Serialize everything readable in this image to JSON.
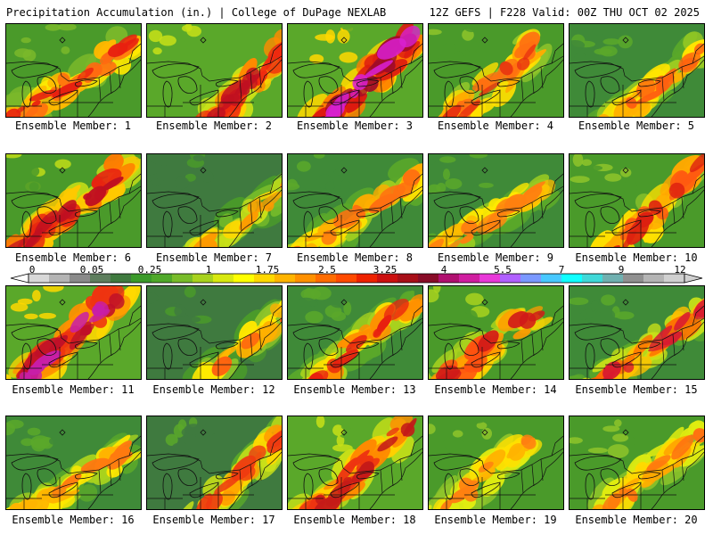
{
  "header": {
    "title": "Precipitation Accumulation (in.) | College of DuPage NEXLAB",
    "run_info": "12Z GEFS | F228 Valid: 00Z THU OCT 02 2025"
  },
  "legend": {
    "labels": [
      "0",
      "0.05",
      "0.25",
      "1",
      "1.75",
      "2.5",
      "3.25",
      "4",
      "5.5",
      "7",
      "9",
      "12"
    ],
    "colors": [
      "#d8d8d8",
      "#b4b4b4",
      "#8a8a8a",
      "#5e7e5e",
      "#3f7a3f",
      "#3b9a2a",
      "#4fa82a",
      "#78bc2a",
      "#a8d21e",
      "#d8e810",
      "#ffff00",
      "#ffd800",
      "#ffb400",
      "#ff9000",
      "#ff6c00",
      "#ff4a00",
      "#ee2200",
      "#cc1010",
      "#a80f18",
      "#880c28",
      "#b01070",
      "#d01ea0",
      "#e838d8",
      "#b060ff",
      "#7a98ff",
      "#48c8ff",
      "#10ffff",
      "#40d8d8",
      "#70b0b0",
      "#909090",
      "#b4b4b4",
      "#d0d0d0"
    ]
  },
  "members": [
    {
      "label": "Ensemble Member: 1",
      "palette": [
        "#4a9a2a",
        "#7ab82a",
        "#ffe800",
        "#ffb800",
        "#ff6a10",
        "#e82010"
      ]
    },
    {
      "label": "Ensemble Member: 2",
      "palette": [
        "#5aa82a",
        "#c8e018",
        "#ffd000",
        "#ff8a00",
        "#ee2a10",
        "#c01020"
      ]
    },
    {
      "label": "Ensemble Member: 3",
      "palette": [
        "#5aa82a",
        "#ffd800",
        "#ff7a00",
        "#dd1a10",
        "#a00c28",
        "#d820d0"
      ]
    },
    {
      "label": "Ensemble Member: 4",
      "palette": [
        "#4a9a2a",
        "#8ec42a",
        "#ffe000",
        "#ffac00",
        "#ff7010",
        "#e83010"
      ]
    },
    {
      "label": "Ensemble Member: 5",
      "palette": [
        "#3f8a38",
        "#5aa82a",
        "#9ccc22",
        "#ffe400",
        "#ffb000",
        "#ff6010"
      ]
    },
    {
      "label": "Ensemble Member: 6",
      "palette": [
        "#4a9a2a",
        "#c0dc18",
        "#ffc800",
        "#ff7a00",
        "#e82410",
        "#c01020"
      ]
    },
    {
      "label": "Ensemble Member: 7",
      "palette": [
        "#3f7a3f",
        "#4a9a2a",
        "#78bc2a",
        "#c8e018",
        "#ffd800",
        "#ff9a00"
      ]
    },
    {
      "label": "Ensemble Member: 8",
      "palette": [
        "#3f8a38",
        "#5aa82a",
        "#a8d21e",
        "#ffe000",
        "#ffac00",
        "#ff7010"
      ]
    },
    {
      "label": "Ensemble Member: 9",
      "palette": [
        "#3f8a38",
        "#5aa82a",
        "#98ca22",
        "#ffe800",
        "#ffb800",
        "#ff8010"
      ]
    },
    {
      "label": "Ensemble Member: 10",
      "palette": [
        "#4a9a2a",
        "#8ec42a",
        "#ffe000",
        "#ffa800",
        "#ff5a10",
        "#dd2010"
      ]
    },
    {
      "label": "Ensemble Member: 11",
      "palette": [
        "#5aa82a",
        "#ffd800",
        "#ff9000",
        "#ee3410",
        "#c01028",
        "#c81ea8"
      ]
    },
    {
      "label": "Ensemble Member: 12",
      "palette": [
        "#3f7a3f",
        "#4a9a2a",
        "#8ec42a",
        "#ffe800",
        "#ffb000",
        "#ff6010"
      ]
    },
    {
      "label": "Ensemble Member: 13",
      "palette": [
        "#3f8a38",
        "#5aa82a",
        "#a8d21e",
        "#ffe000",
        "#ff9000",
        "#e82010"
      ]
    },
    {
      "label": "Ensemble Member: 14",
      "palette": [
        "#4a9a2a",
        "#a8d21e",
        "#ffd000",
        "#ff9a00",
        "#ff5010",
        "#d01a18"
      ]
    },
    {
      "label": "Ensemble Member: 15",
      "palette": [
        "#3f8a38",
        "#5aa82a",
        "#c8e018",
        "#ffc000",
        "#ff6a00",
        "#d81a30"
      ]
    },
    {
      "label": "Ensemble Member: 16",
      "palette": [
        "#3f8a38",
        "#5aa82a",
        "#a8d21e",
        "#ffe800",
        "#ffb400",
        "#ff7a10"
      ]
    },
    {
      "label": "Ensemble Member: 17",
      "palette": [
        "#3f7a3f",
        "#5aa82a",
        "#c8e018",
        "#ffd800",
        "#ff9a00",
        "#ee3a10"
      ]
    },
    {
      "label": "Ensemble Member: 18",
      "palette": [
        "#5aa82a",
        "#c8e018",
        "#ffd000",
        "#ff8a00",
        "#ee3410",
        "#c41a18"
      ]
    },
    {
      "label": "Ensemble Member: 19",
      "palette": [
        "#4a9a2a",
        "#8ec42a",
        "#e0ec10",
        "#ffe000",
        "#ffb400",
        "#ff8010"
      ]
    },
    {
      "label": "Ensemble Member: 20",
      "palette": [
        "#4a9a2a",
        "#8ec42a",
        "#e0ec10",
        "#ffd800",
        "#ffa800",
        "#ff7010"
      ]
    }
  ]
}
